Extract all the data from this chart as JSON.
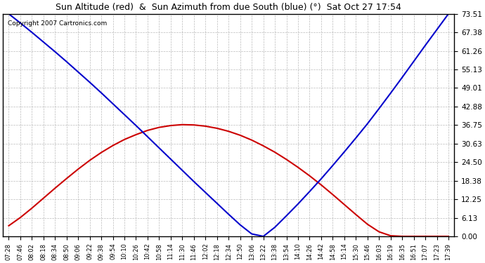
{
  "title": "Sun Altitude (red)  &  Sun Azimuth from due South (blue) (°)  Sat Oct 27 17:54",
  "copyright_text": "Copyright 2007 Cartronics.com",
  "background_color": "#ffffff",
  "plot_bg_color": "#ffffff",
  "grid_color": "#aaaaaa",
  "line_red_color": "#cc0000",
  "line_blue_color": "#0000cc",
  "ymin": 0.0,
  "ymax": 73.51,
  "yticks": [
    0.0,
    6.13,
    12.25,
    18.38,
    24.5,
    30.63,
    36.75,
    42.88,
    49.01,
    55.13,
    61.26,
    67.38,
    73.51
  ],
  "x_labels": [
    "07:28",
    "07:46",
    "08:02",
    "08:18",
    "08:34",
    "08:50",
    "09:06",
    "09:22",
    "09:38",
    "09:54",
    "10:10",
    "10:26",
    "10:42",
    "10:58",
    "11:14",
    "11:30",
    "11:46",
    "12:02",
    "12:18",
    "12:34",
    "12:50",
    "13:06",
    "13:22",
    "13:38",
    "13:54",
    "14:10",
    "14:26",
    "14:42",
    "14:58",
    "15:14",
    "15:30",
    "15:46",
    "16:03",
    "16:19",
    "16:35",
    "16:51",
    "17:07",
    "17:23",
    "17:39"
  ],
  "sun_altitude": [
    3.5,
    6.2,
    9.3,
    12.6,
    15.9,
    19.1,
    22.2,
    25.1,
    27.7,
    30.0,
    32.0,
    33.6,
    35.0,
    36.0,
    36.6,
    36.9,
    36.8,
    36.4,
    35.7,
    34.7,
    33.4,
    31.8,
    29.9,
    27.8,
    25.4,
    22.8,
    20.0,
    17.0,
    13.8,
    10.5,
    7.2,
    4.0,
    1.5,
    0.2,
    0.0,
    0.0,
    0.0,
    0.0,
    0.0
  ],
  "sun_azimuth": [
    73.51,
    70.5,
    67.4,
    64.2,
    61.0,
    57.7,
    54.3,
    50.9,
    47.4,
    43.8,
    40.2,
    36.6,
    32.9,
    29.2,
    25.5,
    21.8,
    18.1,
    14.5,
    10.9,
    7.3,
    3.8,
    0.8,
    0.0,
    3.0,
    6.8,
    10.7,
    14.8,
    19.0,
    23.4,
    27.9,
    32.5,
    37.2,
    42.2,
    47.3,
    52.5,
    57.8,
    63.1,
    68.3,
    73.51
  ]
}
